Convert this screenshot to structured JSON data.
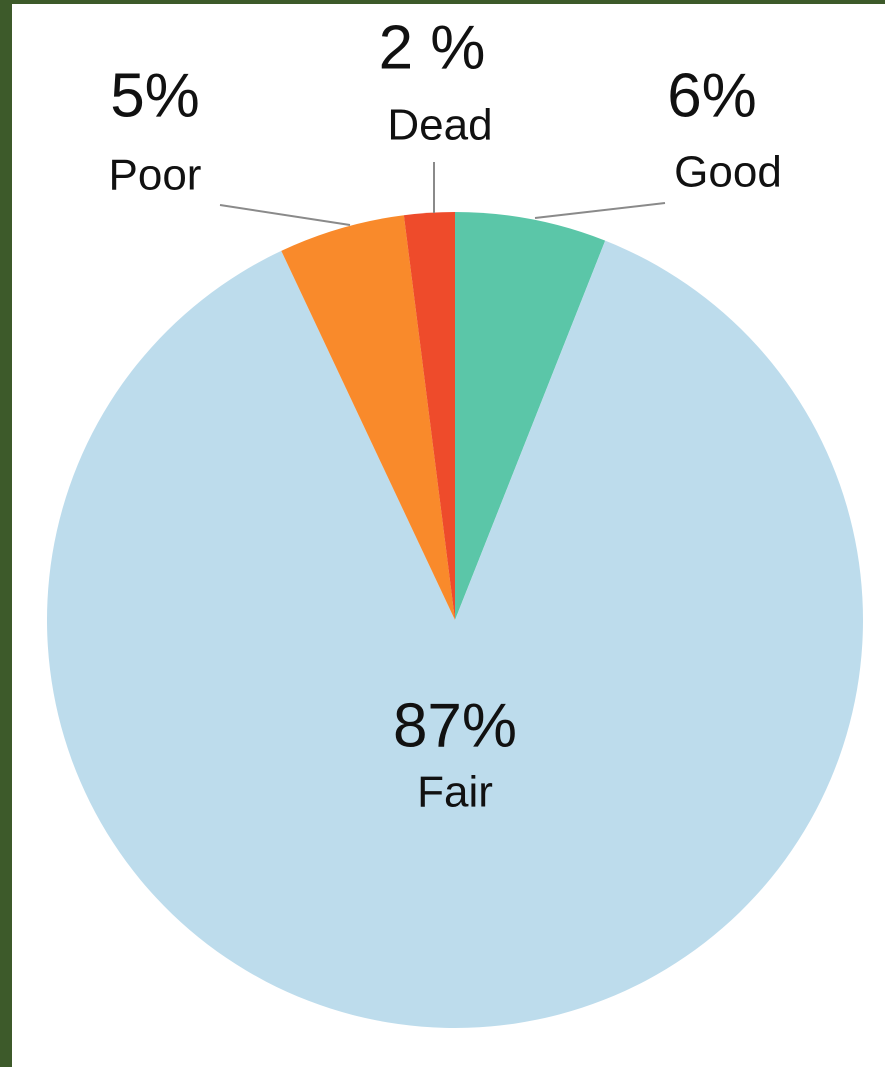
{
  "chart_data": {
    "type": "pie",
    "categories": [
      "Good",
      "Fair",
      "Poor",
      "Dead"
    ],
    "values": [
      6,
      87,
      5,
      2
    ],
    "value_labels": [
      "6%",
      "87%",
      "5%",
      "2 %"
    ],
    "colors": [
      "#5bc6a8",
      "#bddcec",
      "#f98a2b",
      "#ee4b2b"
    ]
  }
}
